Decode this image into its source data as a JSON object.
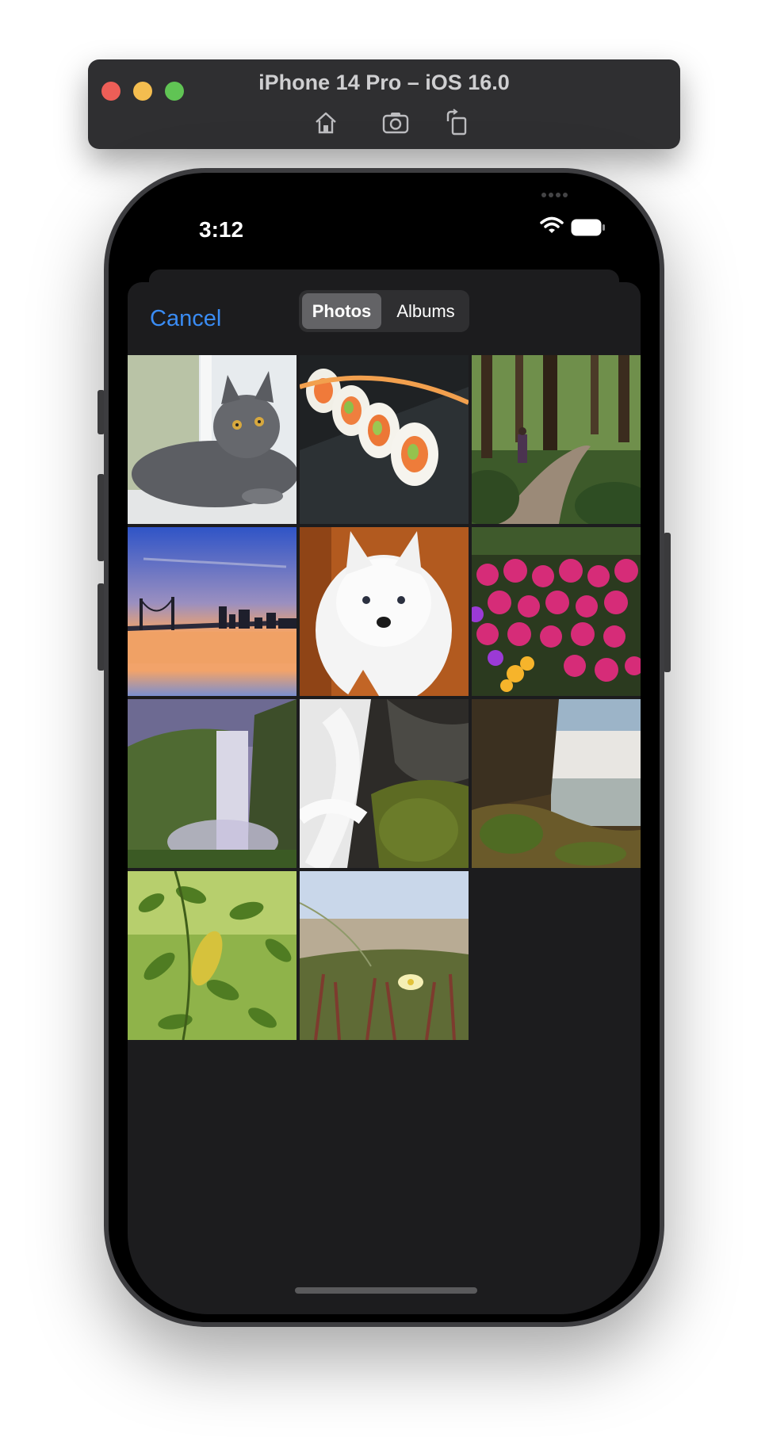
{
  "simulator": {
    "title": "iPhone 14 Pro – iOS 16.0",
    "tools": [
      "home-icon",
      "screenshot-icon",
      "rotate-icon"
    ]
  },
  "status_bar": {
    "time": "3:12",
    "icons": [
      "signal-dots-icon",
      "wifi-icon",
      "battery-icon"
    ]
  },
  "picker": {
    "cancel_label": "Cancel",
    "tabs": [
      {
        "label": "Photos",
        "selected": true
      },
      {
        "label": "Albums",
        "selected": false
      }
    ],
    "accent_color": "#3a8cf4",
    "photos": [
      {
        "subject": "gray-cat"
      },
      {
        "subject": "sushi-rolls"
      },
      {
        "subject": "forest-trail"
      },
      {
        "subject": "bay-bridge-sunset"
      },
      {
        "subject": "white-dog"
      },
      {
        "subject": "pink-flowers"
      },
      {
        "subject": "skogafoss-waterfall"
      },
      {
        "subject": "mossy-cascade"
      },
      {
        "subject": "waterfall-cliff"
      },
      {
        "subject": "green-leaves"
      },
      {
        "subject": "dune-flowers"
      }
    ]
  }
}
